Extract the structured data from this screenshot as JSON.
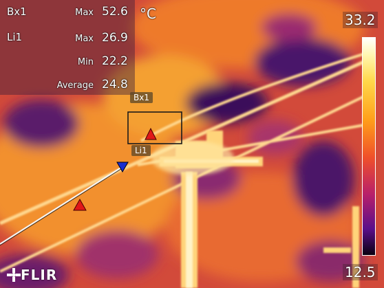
{
  "camera": {
    "brand": "FLIR",
    "unit": "°C",
    "scale_max": "33.2",
    "scale_min": "12.5"
  },
  "measurements": {
    "box": {
      "name": "Bx1",
      "stat": "Max",
      "value": "52.6"
    },
    "line": {
      "name": "Li1",
      "max_label": "Max",
      "max_value": "26.9",
      "min_label": "Min",
      "min_value": "22.2",
      "avg_label": "Average",
      "avg_value": "24.8"
    }
  },
  "tools": {
    "box_tag": "Bx1",
    "line_tag": "Li1"
  },
  "colors": {
    "hot_marker": "#e01818",
    "cold_marker": "#1a2ed0",
    "box_outline": "#1a1a1a"
  }
}
